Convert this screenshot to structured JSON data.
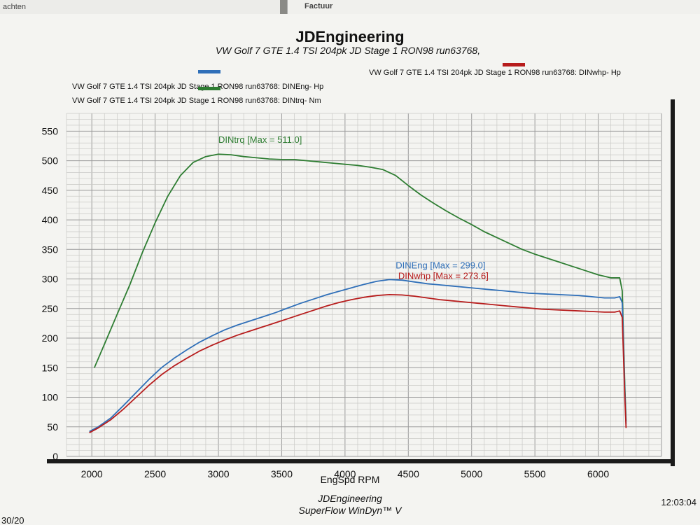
{
  "background": {
    "left_sheet_text": "achten",
    "right_sheet_text": "Factuur"
  },
  "header": {
    "title": "JDEngineering",
    "subtitle": "VW Golf 7 GTE 1.4 TSI 204pk  JD Stage 1  RON98  run63768,"
  },
  "legend": [
    {
      "text": "VW Golf 7 GTE 1.4 TSI 204pk   JD Stage 1     RON98   run63768: DINEng- Hp",
      "color": "#2f6fb8"
    },
    {
      "text": "VW Golf 7 GTE 1.4 TSI 204pk   JD Stage 1     RON98   run63768: DINtrq- Nm",
      "color": "#2e7d32"
    },
    {
      "text": "VW Golf 7 GTE 1.4 TSI 204pk   JD Stage 1     RON98   run63768: DINwhp-  Hp",
      "color": "#b71c1c"
    }
  ],
  "footer": {
    "line1": "JDEngineering",
    "line2": "SuperFlow WinDyn™ V",
    "time": "12:03:04",
    "corner": "30/20"
  },
  "chart_data": {
    "type": "line",
    "title": "JDEngineering",
    "xlabel": "EngSpd  RPM",
    "ylabel": "",
    "xlim": [
      1800,
      6500
    ],
    "ylim": [
      0,
      580
    ],
    "x_ticks": [
      2000,
      2500,
      3000,
      3500,
      4000,
      4500,
      5000,
      5500,
      6000
    ],
    "y_ticks": [
      0,
      50,
      100,
      150,
      200,
      250,
      300,
      350,
      400,
      450,
      500,
      550
    ],
    "grid": true,
    "series": [
      {
        "name": "DINtrq- Nm",
        "color": "#2e7d32",
        "annotation": "DINtrq [Max = 511.0]",
        "annotation_at": [
          3000,
          530
        ],
        "points": [
          [
            2020,
            150
          ],
          [
            2100,
            190
          ],
          [
            2200,
            240
          ],
          [
            2300,
            290
          ],
          [
            2400,
            345
          ],
          [
            2500,
            395
          ],
          [
            2600,
            440
          ],
          [
            2700,
            475
          ],
          [
            2800,
            497
          ],
          [
            2900,
            507
          ],
          [
            3000,
            511
          ],
          [
            3100,
            510
          ],
          [
            3200,
            507
          ],
          [
            3300,
            505
          ],
          [
            3400,
            503
          ],
          [
            3500,
            502
          ],
          [
            3600,
            502
          ],
          [
            3700,
            500
          ],
          [
            3800,
            498
          ],
          [
            3900,
            496
          ],
          [
            4000,
            494
          ],
          [
            4100,
            492
          ],
          [
            4200,
            489
          ],
          [
            4300,
            485
          ],
          [
            4400,
            475
          ],
          [
            4500,
            458
          ],
          [
            4600,
            442
          ],
          [
            4700,
            428
          ],
          [
            4800,
            415
          ],
          [
            4900,
            403
          ],
          [
            5000,
            392
          ],
          [
            5100,
            380
          ],
          [
            5200,
            370
          ],
          [
            5300,
            360
          ],
          [
            5400,
            350
          ],
          [
            5500,
            342
          ],
          [
            5600,
            335
          ],
          [
            5700,
            328
          ],
          [
            5800,
            321
          ],
          [
            5900,
            314
          ],
          [
            6000,
            307
          ],
          [
            6100,
            302
          ],
          [
            6170,
            302
          ],
          [
            6190,
            280
          ],
          [
            6200,
            200
          ],
          [
            6210,
            120
          ],
          [
            6220,
            60
          ]
        ]
      },
      {
        "name": "DINEng- Hp",
        "color": "#2f6fb8",
        "annotation": "DINEng [Max = 299.0]",
        "annotation_at": [
          4400,
          318
        ],
        "points": [
          [
            1980,
            42
          ],
          [
            2050,
            50
          ],
          [
            2150,
            65
          ],
          [
            2250,
            86
          ],
          [
            2350,
            108
          ],
          [
            2450,
            130
          ],
          [
            2550,
            150
          ],
          [
            2650,
            166
          ],
          [
            2750,
            180
          ],
          [
            2850,
            193
          ],
          [
            2950,
            204
          ],
          [
            3050,
            214
          ],
          [
            3150,
            222
          ],
          [
            3250,
            229
          ],
          [
            3350,
            236
          ],
          [
            3450,
            243
          ],
          [
            3550,
            251
          ],
          [
            3650,
            259
          ],
          [
            3750,
            266
          ],
          [
            3850,
            273
          ],
          [
            3950,
            279
          ],
          [
            4050,
            285
          ],
          [
            4150,
            291
          ],
          [
            4250,
            296
          ],
          [
            4350,
            299
          ],
          [
            4450,
            298
          ],
          [
            4550,
            295
          ],
          [
            4650,
            292
          ],
          [
            4750,
            290
          ],
          [
            4850,
            288
          ],
          [
            4950,
            286
          ],
          [
            5050,
            284
          ],
          [
            5150,
            282
          ],
          [
            5250,
            280
          ],
          [
            5350,
            278
          ],
          [
            5450,
            276
          ],
          [
            5550,
            275
          ],
          [
            5650,
            274
          ],
          [
            5750,
            273
          ],
          [
            5850,
            272
          ],
          [
            5950,
            270
          ],
          [
            6050,
            268
          ],
          [
            6130,
            268
          ],
          [
            6170,
            270
          ],
          [
            6190,
            260
          ],
          [
            6200,
            190
          ],
          [
            6210,
            110
          ],
          [
            6220,
            55
          ]
        ]
      },
      {
        "name": "DINwhp-  Hp",
        "color": "#b71c1c",
        "annotation": "DINwhp [Max = 273.6]",
        "annotation_at": [
          4420,
          300
        ],
        "points": [
          [
            1980,
            40
          ],
          [
            2050,
            48
          ],
          [
            2150,
            62
          ],
          [
            2250,
            80
          ],
          [
            2350,
            100
          ],
          [
            2450,
            120
          ],
          [
            2550,
            138
          ],
          [
            2650,
            153
          ],
          [
            2750,
            166
          ],
          [
            2850,
            178
          ],
          [
            2950,
            188
          ],
          [
            3050,
            197
          ],
          [
            3150,
            205
          ],
          [
            3250,
            212
          ],
          [
            3350,
            219
          ],
          [
            3450,
            226
          ],
          [
            3550,
            233
          ],
          [
            3650,
            240
          ],
          [
            3750,
            247
          ],
          [
            3850,
            254
          ],
          [
            3950,
            260
          ],
          [
            4050,
            265
          ],
          [
            4150,
            269
          ],
          [
            4250,
            272
          ],
          [
            4350,
            273.6
          ],
          [
            4450,
            273
          ],
          [
            4550,
            271
          ],
          [
            4650,
            268
          ],
          [
            4750,
            265
          ],
          [
            4850,
            263
          ],
          [
            4950,
            261
          ],
          [
            5050,
            259
          ],
          [
            5150,
            257
          ],
          [
            5250,
            255
          ],
          [
            5350,
            253
          ],
          [
            5450,
            251
          ],
          [
            5550,
            249
          ],
          [
            5650,
            248
          ],
          [
            5750,
            247
          ],
          [
            5850,
            246
          ],
          [
            5950,
            245
          ],
          [
            6050,
            244
          ],
          [
            6130,
            244
          ],
          [
            6170,
            246
          ],
          [
            6190,
            235
          ],
          [
            6200,
            170
          ],
          [
            6210,
            100
          ],
          [
            6220,
            48
          ]
        ]
      }
    ]
  }
}
